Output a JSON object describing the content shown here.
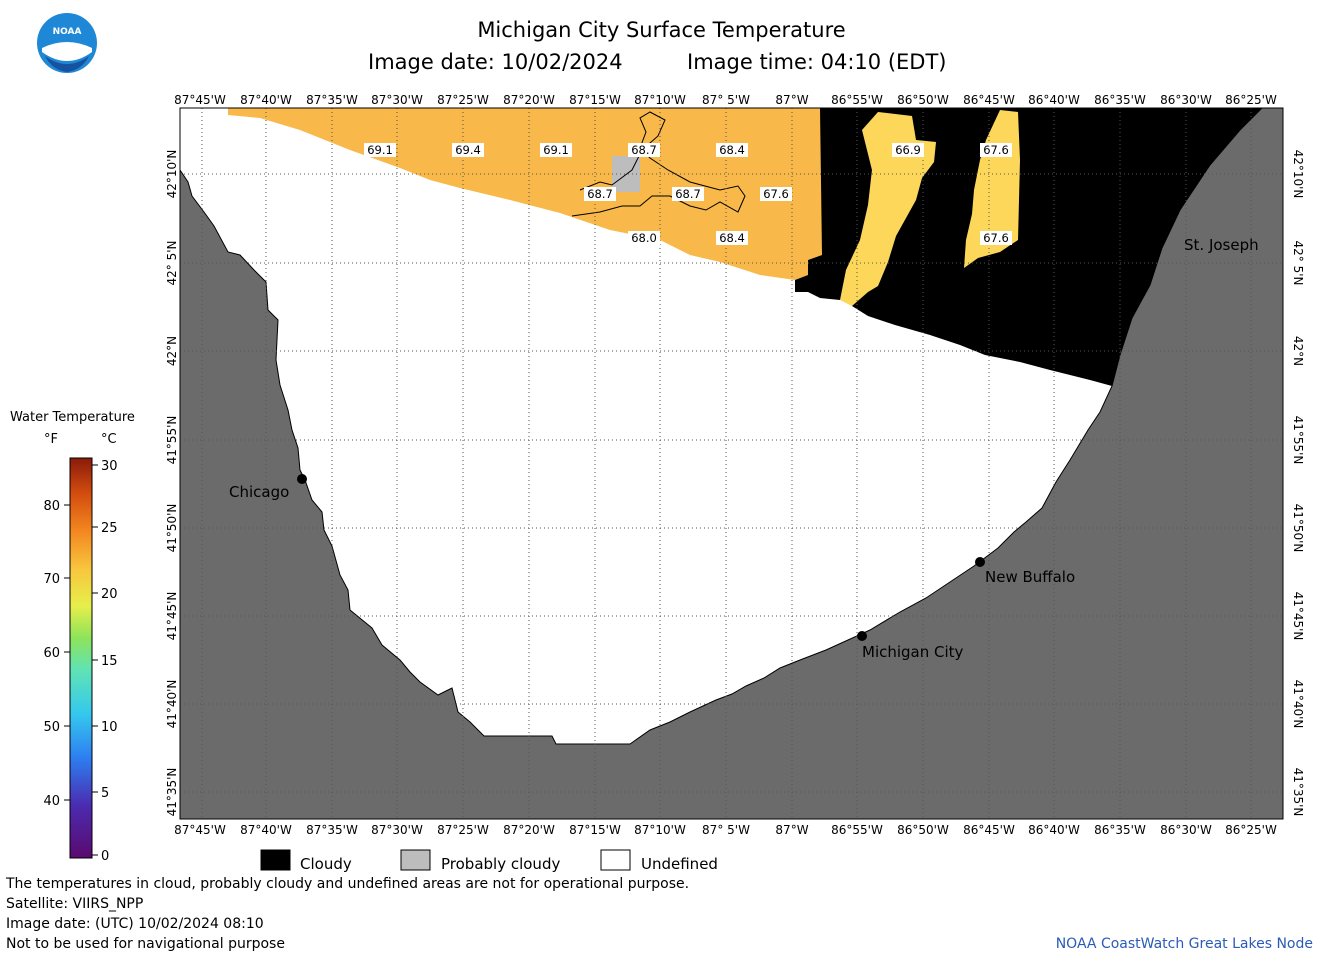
{
  "header": {
    "title": "Michigan City Surface Temperature",
    "image_date": "Image date: 10/02/2024",
    "image_time": "Image time: 04:10 (EDT)"
  },
  "logo": {
    "text": "NOAA",
    "color": "#1e88d6"
  },
  "axes": {
    "longitudes": [
      "87°45'W",
      "87°40'W",
      "87°35'W",
      "87°30'W",
      "87°25'W",
      "87°20'W",
      "87°15'W",
      "87°10'W",
      "87° 5'W",
      "87°W",
      "86°55'W",
      "86°50'W",
      "86°45'W",
      "86°40'W",
      "86°35'W",
      "86°30'W",
      "86°25'W"
    ],
    "latitudes": [
      "42°10'N",
      "42° 5'N",
      "42°N",
      "41°55'N",
      "41°50'N",
      "41°45'N",
      "41°40'N",
      "41°35'N"
    ]
  },
  "temperatures": [
    {
      "value": "69.1"
    },
    {
      "value": "69.4"
    },
    {
      "value": "69.1"
    },
    {
      "value": "68.7"
    },
    {
      "value": "68.4"
    },
    {
      "value": "66.9"
    },
    {
      "value": "67.6"
    },
    {
      "value": "68.7"
    },
    {
      "value": "68.7"
    },
    {
      "value": "67.6"
    },
    {
      "value": "68.0"
    },
    {
      "value": "68.4"
    },
    {
      "value": "67.6"
    }
  ],
  "cities": [
    {
      "name": "Chicago"
    },
    {
      "name": "Michigan City"
    },
    {
      "name": "New Buffalo"
    },
    {
      "name": "St. Joseph"
    }
  ],
  "legend": {
    "title": "Water Temperature",
    "unit_f": "°F",
    "unit_c": "°C",
    "f_ticks": [
      "80",
      "70",
      "60",
      "50",
      "40"
    ],
    "c_ticks": [
      "30",
      "25",
      "20",
      "15",
      "10",
      "5",
      "0"
    ]
  },
  "categories": [
    {
      "label": "Cloudy",
      "color": "#000000"
    },
    {
      "label": "Probably cloudy",
      "color": "#bdbdbd"
    },
    {
      "label": "Undefined",
      "color": "#ffffff"
    }
  ],
  "colors": {
    "land": "#6b6b6b",
    "water_warm": "#f8b84a",
    "water_cool": "#fcd759",
    "cloud": "#000000"
  },
  "footer": {
    "note": "The temperatures in cloud, probably cloudy and undefined areas are not for operational purpose.",
    "satellite": "Satellite: VIIRS_NPP",
    "utc_date": "Image date: (UTC) 10/02/2024  08:10",
    "nav_warning": "Not to be used for navigational purpose",
    "credit": "NOAA CoastWatch Great Lakes Node"
  }
}
